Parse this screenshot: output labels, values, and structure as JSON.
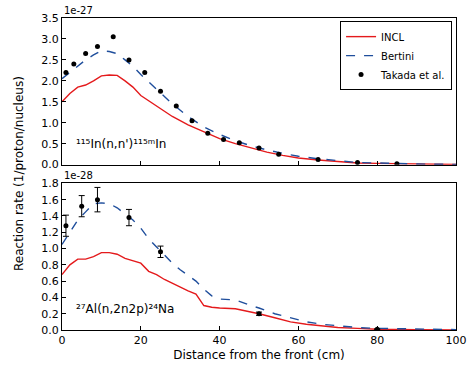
{
  "chart_data": [
    {
      "type": "line",
      "ylabel": "Reaction rate (1/proton/nucleus)",
      "offset_label": "1e-27",
      "annotation": "¹¹⁵In(n,n')¹¹⁵ᵐIn",
      "xlim": [
        0,
        100
      ],
      "xticks": [
        0,
        20,
        40,
        60,
        80,
        100
      ],
      "ylim": [
        0,
        3.5
      ],
      "yticks": [
        {
          "value": 0,
          "label": "0.0"
        },
        {
          "value": 0.5,
          "label": "0.5"
        },
        {
          "value": 1,
          "label": "1.0"
        },
        {
          "value": 1.5,
          "label": "1.5"
        },
        {
          "value": 2,
          "label": "2.0"
        },
        {
          "value": 2.5,
          "label": "2.5"
        },
        {
          "value": 3,
          "label": "3.0"
        },
        {
          "value": 3.5,
          "label": "3.5"
        }
      ],
      "tick_labels": "y",
      "legend": "upper right",
      "grid": false,
      "series": [
        {
          "name": "INCL",
          "color": "#e41a1c",
          "line_style": "solid",
          "x": [
            0,
            2,
            4,
            6,
            8,
            10,
            12,
            14,
            16,
            18,
            20,
            24,
            28,
            32,
            36,
            40,
            44,
            48,
            52,
            56,
            60,
            65,
            70,
            75,
            80,
            85,
            90,
            95,
            100
          ],
          "values": [
            1.5,
            1.7,
            1.85,
            1.9,
            2.0,
            2.12,
            2.14,
            2.13,
            2.0,
            1.85,
            1.65,
            1.4,
            1.15,
            0.95,
            0.78,
            0.62,
            0.5,
            0.4,
            0.3,
            0.22,
            0.16,
            0.11,
            0.07,
            0.04,
            0.03,
            0.02,
            0.01,
            0.005,
            0.003
          ]
        },
        {
          "name": "Bertini",
          "color": "#1f4e9c",
          "line_style": "dashed",
          "x": [
            0,
            2,
            4,
            6,
            8,
            10,
            12,
            14,
            16,
            18,
            20,
            24,
            28,
            32,
            36,
            40,
            44,
            48,
            52,
            56,
            60,
            65,
            70,
            75,
            80,
            85,
            90,
            95,
            100
          ],
          "values": [
            2.05,
            2.2,
            2.35,
            2.5,
            2.62,
            2.72,
            2.7,
            2.65,
            2.5,
            2.35,
            2.15,
            1.8,
            1.45,
            1.15,
            0.9,
            0.72,
            0.57,
            0.45,
            0.35,
            0.27,
            0.2,
            0.14,
            0.09,
            0.05,
            0.04,
            0.02,
            0.015,
            0.01,
            0.005
          ]
        },
        {
          "name": "Takada et al.",
          "color": "#000000",
          "marker": "circle",
          "x": [
            1,
            3,
            6,
            9,
            13,
            17,
            21,
            25,
            29,
            33,
            37,
            41,
            45,
            50,
            55,
            65,
            75,
            85
          ],
          "values": [
            2.2,
            2.4,
            2.65,
            2.82,
            3.05,
            2.5,
            2.2,
            1.75,
            1.4,
            1.05,
            0.75,
            0.6,
            0.52,
            0.4,
            0.25,
            0.12,
            0.05,
            0.02
          ]
        }
      ]
    },
    {
      "type": "line",
      "xlabel": "Distance from the front (cm)",
      "offset_label": "1e-28",
      "annotation": "²⁷Al(n,2n2p)²⁴Na",
      "xlim": [
        0,
        100
      ],
      "xticks": [
        0,
        20,
        40,
        60,
        80,
        100
      ],
      "ylim": [
        0,
        1.8
      ],
      "yticks": [
        {
          "value": 0,
          "label": "0.0"
        },
        {
          "value": 0.2,
          "label": "0.2"
        },
        {
          "value": 0.4,
          "label": "0.4"
        },
        {
          "value": 0.6,
          "label": "0.6"
        },
        {
          "value": 0.8,
          "label": "0.8"
        },
        {
          "value": 1,
          "label": "1.0"
        },
        {
          "value": 1.2,
          "label": "1.2"
        },
        {
          "value": 1.4,
          "label": "1.4"
        },
        {
          "value": 1.6,
          "label": "1.6"
        },
        {
          "value": 1.8,
          "label": "1.8"
        }
      ],
      "grid": false,
      "series": [
        {
          "name": "INCL",
          "color": "#e41a1c",
          "line_style": "solid",
          "x": [
            0,
            2,
            4,
            6,
            8,
            10,
            12,
            14,
            16,
            18,
            20,
            22,
            24,
            26,
            28,
            30,
            32,
            34,
            36,
            38,
            40,
            44,
            48,
            50,
            54,
            58,
            62,
            66,
            70,
            75,
            80,
            90,
            100
          ],
          "values": [
            0.68,
            0.8,
            0.87,
            0.87,
            0.9,
            0.95,
            0.95,
            0.93,
            0.88,
            0.85,
            0.82,
            0.72,
            0.68,
            0.62,
            0.57,
            0.52,
            0.48,
            0.44,
            0.3,
            0.28,
            0.27,
            0.26,
            0.22,
            0.2,
            0.15,
            0.1,
            0.07,
            0.05,
            0.03,
            0.02,
            0.01,
            0.005,
            0.002
          ]
        },
        {
          "name": "Bertini",
          "color": "#1f4e9c",
          "line_style": "dashed",
          "x": [
            0,
            2,
            4,
            6,
            8,
            10,
            12,
            14,
            16,
            18,
            20,
            22,
            24,
            26,
            28,
            30,
            32,
            34,
            36,
            38,
            40,
            44,
            48,
            50,
            54,
            58,
            62,
            66,
            70,
            75,
            80,
            90,
            100
          ],
          "values": [
            1.05,
            1.2,
            1.35,
            1.45,
            1.55,
            1.56,
            1.55,
            1.5,
            1.42,
            1.35,
            1.25,
            1.12,
            1.02,
            0.92,
            0.82,
            0.74,
            0.67,
            0.6,
            0.5,
            0.42,
            0.38,
            0.37,
            0.3,
            0.27,
            0.2,
            0.15,
            0.1,
            0.07,
            0.05,
            0.03,
            0.02,
            0.01,
            0.005
          ]
        },
        {
          "name": "Takada et al.",
          "color": "#000000",
          "marker": "circle",
          "x": [
            1,
            5,
            9,
            17,
            25,
            50,
            80
          ],
          "values": [
            1.28,
            1.52,
            1.6,
            1.38,
            0.96,
            0.2,
            0.01
          ],
          "error": [
            0.13,
            0.13,
            0.15,
            0.1,
            0.07,
            0.02,
            0.005
          ]
        }
      ]
    }
  ]
}
